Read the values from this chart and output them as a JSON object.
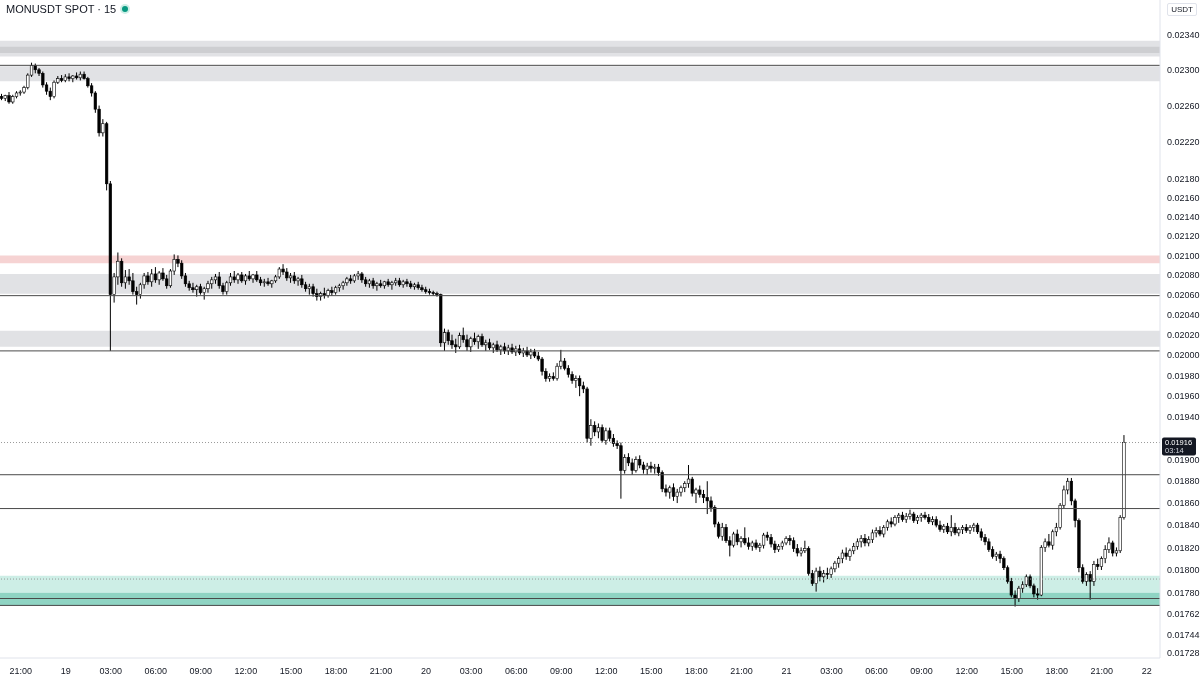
{
  "chart_data": {
    "type": "candlestick",
    "title": "MONUSDT SPOT · 15",
    "ylabel": "USDT",
    "color": "#000000",
    "log": true,
    "ylim": [
      0.01724,
      0.0238
    ],
    "yticks": [
      {
        "value": 0.0234,
        "label": "0.02340"
      },
      {
        "value": 0.023,
        "label": "0.02300"
      },
      {
        "value": 0.0226,
        "label": "0.02260"
      },
      {
        "value": 0.0222,
        "label": "0.02220"
      },
      {
        "value": 0.0218,
        "label": "0.02180"
      },
      {
        "value": 0.0216,
        "label": "0.02160"
      },
      {
        "value": 0.0214,
        "label": "0.02140"
      },
      {
        "value": 0.0212,
        "label": "0.02120"
      },
      {
        "value": 0.021,
        "label": "0.02100"
      },
      {
        "value": 0.0208,
        "label": "0.02080"
      },
      {
        "value": 0.0206,
        "label": "0.02060"
      },
      {
        "value": 0.0204,
        "label": "0.02040"
      },
      {
        "value": 0.0202,
        "label": "0.02020"
      },
      {
        "value": 0.02,
        "label": "0.02000"
      },
      {
        "value": 0.0198,
        "label": "0.01980"
      },
      {
        "value": 0.0196,
        "label": "0.01960"
      },
      {
        "value": 0.0194,
        "label": "0.01940"
      },
      {
        "value": 0.019,
        "label": "0.01900"
      },
      {
        "value": 0.0188,
        "label": "0.01880"
      },
      {
        "value": 0.0186,
        "label": "0.01860"
      },
      {
        "value": 0.0184,
        "label": "0.01840"
      },
      {
        "value": 0.0182,
        "label": "0.01820"
      },
      {
        "value": 0.018,
        "label": "0.01800"
      },
      {
        "value": 0.0178,
        "label": "0.01780"
      },
      0.01762,
      0.01744,
      0.01728
    ],
    "bands": [
      {
        "axis": "y",
        "from": 0.02315,
        "to": 0.02333,
        "color": "#e1e2e5"
      },
      {
        "axis": "y",
        "from": 0.02319,
        "to": 0.02326,
        "color": "#cdced1"
      },
      {
        "axis": "y",
        "from": 0.02287,
        "to": 0.02304,
        "color": "#e1e2e5"
      },
      {
        "axis": "y",
        "from": 0.02092,
        "to": 0.021,
        "color": "#f6d3d3"
      },
      {
        "axis": "y",
        "from": 0.02061,
        "to": 0.02081,
        "color": "#e1e2e5"
      },
      {
        "axis": "y",
        "from": 0.02008,
        "to": 0.02024,
        "color": "#e1e2e5"
      },
      {
        "axis": "y",
        "from": 0.0178,
        "to": 0.01795,
        "color": "#cdeee6"
      },
      {
        "axis": "y",
        "from": 0.01769,
        "to": 0.0178,
        "color": "#8fd4c3"
      }
    ],
    "ref_lines": [
      {
        "axis": "y",
        "value": 0.02305,
        "color": "#4a4a4a"
      },
      {
        "axis": "y",
        "value": 0.02059,
        "color": "#4a4a4a"
      },
      {
        "axis": "y",
        "value": 0.02004,
        "color": "#4a4a4a"
      },
      {
        "axis": "y",
        "value": 0.01916,
        "label": "0.01916",
        "color": "#9a9a9a",
        "line_style": "dotted"
      },
      {
        "axis": "y",
        "value": 0.01886,
        "color": "#4a4a4a"
      },
      {
        "axis": "y",
        "value": 0.01855,
        "color": "#4a4a4a"
      },
      {
        "axis": "y",
        "value": 0.01792,
        "color": "#9a9a9a",
        "line_style": "dotted"
      },
      {
        "axis": "y",
        "value": 0.01775,
        "color": "#4a4a4a"
      },
      {
        "axis": "y",
        "value": 0.01769,
        "color": "#4a4a4a"
      }
    ],
    "annotations": [
      "03:14"
    ],
    "categories": [
      null,
      null,
      null,
      null,
      null,
      "21:00",
      null,
      null,
      null,
      null,
      null,
      null,
      null,
      null,
      null,
      null,
      null,
      "19",
      null,
      null,
      null,
      null,
      null,
      null,
      null,
      null,
      null,
      null,
      null,
      "03:00",
      null,
      null,
      null,
      null,
      null,
      null,
      null,
      null,
      null,
      null,
      null,
      "06:00",
      null,
      null,
      null,
      null,
      null,
      null,
      null,
      null,
      null,
      null,
      null,
      "09:00",
      null,
      null,
      null,
      null,
      null,
      null,
      null,
      null,
      null,
      null,
      null,
      "12:00",
      null,
      null,
      null,
      null,
      null,
      null,
      null,
      null,
      null,
      null,
      null,
      "15:00",
      null,
      null,
      null,
      null,
      null,
      null,
      null,
      null,
      null,
      null,
      null,
      "18:00",
      null,
      null,
      null,
      null,
      null,
      null,
      null,
      null,
      null,
      null,
      null,
      "21:00",
      null,
      null,
      null,
      null,
      null,
      null,
      null,
      null,
      null,
      null,
      null,
      "20",
      null,
      null,
      null,
      null,
      null,
      null,
      null,
      null,
      null,
      null,
      null,
      "03:00",
      null,
      null,
      null,
      null,
      null,
      null,
      null,
      null,
      null,
      null,
      null,
      "06:00",
      null,
      null,
      null,
      null,
      null,
      null,
      null,
      null,
      null,
      null,
      null,
      "09:00",
      null,
      null,
      null,
      null,
      null,
      null,
      null,
      null,
      null,
      null,
      null,
      "12:00",
      null,
      null,
      null,
      null,
      null,
      null,
      null,
      null,
      null,
      null,
      null,
      "15:00",
      null,
      null,
      null,
      null,
      null,
      null,
      null,
      null,
      null,
      null,
      null,
      "18:00",
      null,
      null,
      null,
      null,
      null,
      null,
      null,
      null,
      null,
      null,
      null,
      "21:00",
      null,
      null,
      null,
      null,
      null,
      null,
      null,
      null,
      null,
      null,
      null,
      "21",
      null,
      null,
      null,
      null,
      null,
      null,
      null,
      null,
      null,
      null,
      null,
      "03:00",
      null,
      null,
      null,
      null,
      null,
      null,
      null,
      null,
      null,
      null,
      null,
      "06:00",
      null,
      null,
      null,
      null,
      null,
      null,
      null,
      null,
      null,
      null,
      null,
      "09:00",
      null,
      null,
      null,
      null,
      null,
      null,
      null,
      null,
      null,
      null,
      null,
      "12:00",
      null,
      null,
      null,
      null,
      null,
      null,
      null,
      null,
      null,
      null,
      null,
      "15:00",
      null,
      null,
      null,
      null,
      null,
      null,
      null,
      null,
      null,
      null,
      null,
      "18:00",
      null,
      null,
      null,
      null,
      null,
      null,
      null,
      null,
      null,
      null,
      null,
      "21:00",
      null,
      null,
      null,
      null,
      null,
      null,
      null,
      null,
      null,
      null,
      null,
      "22",
      null,
      null,
      null
    ],
    "ohlc": [
      [
        0.0227,
        0.02273,
        0.02266,
        0.02268
      ],
      [
        0.02268,
        0.02272,
        0.02265,
        0.02271
      ],
      [
        0.02271,
        0.02275,
        0.02262,
        0.02264
      ],
      [
        0.02264,
        0.02272,
        0.02262,
        0.0227
      ],
      [
        0.0227,
        0.02276,
        0.02268,
        0.02274
      ],
      [
        0.02274,
        0.02277,
        0.02271,
        0.02275
      ],
      [
        0.02275,
        0.02282,
        0.02273,
        0.0228
      ],
      [
        0.0228,
        0.02296,
        0.02278,
        0.02294
      ],
      [
        0.02294,
        0.02308,
        0.02292,
        0.02305
      ],
      [
        0.02305,
        0.02307,
        0.02296,
        0.023
      ],
      [
        0.023,
        0.02302,
        0.02293,
        0.02296
      ],
      [
        0.02296,
        0.02298,
        0.0228,
        0.02283
      ],
      [
        0.02283,
        0.02286,
        0.02272,
        0.02276
      ],
      [
        0.02276,
        0.0228,
        0.02266,
        0.0227
      ],
      [
        0.0227,
        0.02288,
        0.02268,
        0.02286
      ],
      [
        0.02286,
        0.02293,
        0.02284,
        0.0229
      ],
      [
        0.0229,
        0.02294,
        0.02286,
        0.02288
      ],
      [
        0.02288,
        0.02295,
        0.02286,
        0.02292
      ],
      [
        0.02292,
        0.02296,
        0.02287,
        0.0229
      ],
      [
        0.0229,
        0.02294,
        0.02286,
        0.02293
      ],
      [
        0.02293,
        0.02297,
        0.02289,
        0.02291
      ],
      [
        0.02291,
        0.02298,
        0.02288,
        0.02295
      ],
      [
        0.02295,
        0.02298,
        0.02289,
        0.0229
      ],
      [
        0.0229,
        0.02292,
        0.0228,
        0.02282
      ],
      [
        0.02282,
        0.02285,
        0.0227,
        0.02274
      ],
      [
        0.02274,
        0.02276,
        0.02252,
        0.02256
      ],
      [
        0.02256,
        0.0226,
        0.02226,
        0.0223
      ],
      [
        0.0223,
        0.02245,
        0.02226,
        0.0224
      ],
      [
        0.0224,
        0.02242,
        0.02168,
        0.02175
      ],
      [
        0.02175,
        0.02178,
        0.02004,
        0.0206
      ],
      [
        0.0206,
        0.02082,
        0.02052,
        0.02078
      ],
      [
        0.02078,
        0.02103,
        0.0207,
        0.02094
      ],
      [
        0.02094,
        0.02097,
        0.02068,
        0.02072
      ],
      [
        0.02072,
        0.02085,
        0.02066,
        0.02078
      ],
      [
        0.02078,
        0.02086,
        0.0207,
        0.02074
      ],
      [
        0.02074,
        0.02082,
        0.0206,
        0.02063
      ],
      [
        0.02063,
        0.02068,
        0.0205,
        0.0206
      ],
      [
        0.0206,
        0.02072,
        0.02056,
        0.0207
      ],
      [
        0.0207,
        0.02082,
        0.02066,
        0.02079
      ],
      [
        0.02079,
        0.02083,
        0.0207,
        0.02073
      ],
      [
        0.02073,
        0.02086,
        0.02068,
        0.02081
      ],
      [
        0.02081,
        0.02088,
        0.02072,
        0.02075
      ],
      [
        0.02075,
        0.02084,
        0.0207,
        0.02082
      ],
      [
        0.02082,
        0.02087,
        0.02074,
        0.02076
      ],
      [
        0.02076,
        0.0208,
        0.02066,
        0.02069
      ],
      [
        0.02069,
        0.02086,
        0.02067,
        0.02084
      ],
      [
        0.02084,
        0.02101,
        0.0208,
        0.02096
      ],
      [
        0.02096,
        0.021,
        0.02088,
        0.02092
      ],
      [
        0.02092,
        0.02095,
        0.02076,
        0.02079
      ],
      [
        0.02079,
        0.02082,
        0.02068,
        0.02071
      ],
      [
        0.02071,
        0.02074,
        0.02064,
        0.02067
      ],
      [
        0.02067,
        0.02072,
        0.02062,
        0.02065
      ],
      [
        0.02065,
        0.0207,
        0.02058,
        0.02068
      ],
      [
        0.02068,
        0.02071,
        0.0206,
        0.02062
      ],
      [
        0.02062,
        0.02068,
        0.02055,
        0.02066
      ],
      [
        0.02066,
        0.02074,
        0.02062,
        0.02071
      ],
      [
        0.02071,
        0.02078,
        0.02066,
        0.02075
      ],
      [
        0.02075,
        0.02081,
        0.02071,
        0.02078
      ],
      [
        0.02078,
        0.02083,
        0.02066,
        0.02069
      ],
      [
        0.02069,
        0.02072,
        0.0206,
        0.02063
      ],
      [
        0.02063,
        0.02074,
        0.0206,
        0.02072
      ],
      [
        0.02072,
        0.02082,
        0.02069,
        0.02078
      ],
      [
        0.02078,
        0.02084,
        0.02072,
        0.02075
      ],
      [
        0.02075,
        0.02082,
        0.02071,
        0.0208
      ],
      [
        0.0208,
        0.02083,
        0.02072,
        0.02074
      ],
      [
        0.02074,
        0.02081,
        0.0207,
        0.02079
      ],
      [
        0.02079,
        0.02084,
        0.02074,
        0.02076
      ],
      [
        0.02076,
        0.02081,
        0.02072,
        0.0208
      ],
      [
        0.0208,
        0.02084,
        0.02073,
        0.02075
      ],
      [
        0.02075,
        0.02078,
        0.02069,
        0.02072
      ],
      [
        0.02072,
        0.02076,
        0.02068,
        0.02073
      ],
      [
        0.02073,
        0.02077,
        0.02069,
        0.02071
      ],
      [
        0.02071,
        0.02075,
        0.02067,
        0.02074
      ],
      [
        0.02074,
        0.0208,
        0.02072,
        0.02078
      ],
      [
        0.02078,
        0.02088,
        0.02076,
        0.02086
      ],
      [
        0.02086,
        0.02091,
        0.0208,
        0.02083
      ],
      [
        0.02083,
        0.02087,
        0.02074,
        0.02077
      ],
      [
        0.02077,
        0.02082,
        0.02072,
        0.02079
      ],
      [
        0.02079,
        0.02083,
        0.02071,
        0.02074
      ],
      [
        0.02074,
        0.02078,
        0.02069,
        0.02076
      ],
      [
        0.02076,
        0.0208,
        0.02067,
        0.0207
      ],
      [
        0.0207,
        0.02073,
        0.02063,
        0.02066
      ],
      [
        0.02066,
        0.02071,
        0.0206,
        0.02068
      ],
      [
        0.02068,
        0.02071,
        0.02058,
        0.02061
      ],
      [
        0.02061,
        0.02066,
        0.02054,
        0.02058
      ],
      [
        0.02058,
        0.02063,
        0.02054,
        0.02061
      ],
      [
        0.02061,
        0.02067,
        0.02056,
        0.02059
      ],
      [
        0.02059,
        0.02066,
        0.02057,
        0.02064
      ],
      [
        0.02064,
        0.02068,
        0.02059,
        0.02062
      ],
      [
        0.02062,
        0.02069,
        0.0206,
        0.02067
      ],
      [
        0.02067,
        0.02071,
        0.02063,
        0.02069
      ],
      [
        0.02069,
        0.02074,
        0.02065,
        0.02072
      ],
      [
        0.02072,
        0.02078,
        0.02069,
        0.02076
      ],
      [
        0.02076,
        0.0208,
        0.02071,
        0.02074
      ],
      [
        0.02074,
        0.02081,
        0.02072,
        0.02079
      ],
      [
        0.02079,
        0.02084,
        0.02075,
        0.02081
      ],
      [
        0.02081,
        0.02083,
        0.02072,
        0.02075
      ],
      [
        0.02075,
        0.02078,
        0.02068,
        0.02071
      ],
      [
        0.02071,
        0.02076,
        0.02067,
        0.02074
      ],
      [
        0.02074,
        0.02077,
        0.02066,
        0.02069
      ],
      [
        0.02069,
        0.02073,
        0.02064,
        0.02071
      ],
      [
        0.02071,
        0.02075,
        0.02067,
        0.02069
      ],
      [
        0.02069,
        0.02074,
        0.02066,
        0.02073
      ],
      [
        0.02073,
        0.02076,
        0.02068,
        0.0207
      ],
      [
        0.0207,
        0.02074,
        0.02065,
        0.02072
      ],
      [
        0.02072,
        0.02077,
        0.02069,
        0.02074
      ],
      [
        0.02074,
        0.02077,
        0.02068,
        0.0207
      ],
      [
        0.0207,
        0.02075,
        0.02067,
        0.02073
      ],
      [
        0.02073,
        0.02076,
        0.02068,
        0.02071
      ],
      [
        0.02071,
        0.02074,
        0.02066,
        0.02068
      ],
      [
        0.02068,
        0.02072,
        0.02065,
        0.0207
      ],
      [
        0.0207,
        0.02073,
        0.02065,
        0.02067
      ],
      [
        0.02067,
        0.0207,
        0.02063,
        0.02065
      ],
      [
        0.02065,
        0.02068,
        0.02061,
        0.02063
      ],
      [
        0.02063,
        0.02066,
        0.0206,
        0.02062
      ],
      [
        0.02062,
        0.02064,
        0.02059,
        0.02061
      ],
      [
        0.02061,
        0.02063,
        0.02058,
        0.0206
      ],
      [
        0.0206,
        0.02061,
        0.02008,
        0.02012
      ],
      [
        0.02012,
        0.02026,
        0.02004,
        0.02022
      ],
      [
        0.02022,
        0.02025,
        0.0201,
        0.02014
      ],
      [
        0.02014,
        0.0202,
        0.02006,
        0.0201
      ],
      [
        0.0201,
        0.02016,
        0.02002,
        0.02008
      ],
      [
        0.02008,
        0.02022,
        0.02006,
        0.02019
      ],
      [
        0.02019,
        0.02027,
        0.02012,
        0.02015
      ],
      [
        0.02015,
        0.0202,
        0.02004,
        0.02008
      ],
      [
        0.02008,
        0.02018,
        0.02003,
        0.02016
      ],
      [
        0.02016,
        0.02022,
        0.0201,
        0.02013
      ],
      [
        0.02013,
        0.0202,
        0.02006,
        0.02018
      ],
      [
        0.02018,
        0.02021,
        0.02008,
        0.0201
      ],
      [
        0.0201,
        0.02015,
        0.02004,
        0.02012
      ],
      [
        0.02012,
        0.02016,
        0.02005,
        0.02007
      ],
      [
        0.02007,
        0.02012,
        0.02002,
        0.0201
      ],
      [
        0.0201,
        0.02014,
        0.02003,
        0.02005
      ],
      [
        0.02005,
        0.0201,
        0.02,
        0.02008
      ],
      [
        0.02008,
        0.02012,
        0.02001,
        0.02004
      ],
      [
        0.02004,
        0.0201,
        0.02,
        0.02007
      ],
      [
        0.02007,
        0.02011,
        0.02001,
        0.02003
      ],
      [
        0.02003,
        0.02009,
        0.01999,
        0.02006
      ],
      [
        0.02006,
        0.0201,
        0.02,
        0.02002
      ],
      [
        0.02002,
        0.02007,
        0.01998,
        0.02004
      ],
      [
        0.02004,
        0.02008,
        0.01998,
        0.02
      ],
      [
        0.02,
        0.02006,
        0.01996,
        0.02003
      ],
      [
        0.02003,
        0.02006,
        0.01997,
        0.01999
      ],
      [
        0.01999,
        0.02003,
        0.01994,
        0.01996
      ],
      [
        0.01996,
        0.01998,
        0.0198,
        0.01984
      ],
      [
        0.01984,
        0.01987,
        0.01974,
        0.01977
      ],
      [
        0.01977,
        0.01982,
        0.01974,
        0.01979
      ],
      [
        0.01979,
        0.01983,
        0.01975,
        0.01977
      ],
      [
        0.01977,
        0.01992,
        0.01975,
        0.01989
      ],
      [
        0.01989,
        0.02005,
        0.01986,
        0.01994
      ],
      [
        0.01994,
        0.01997,
        0.01985,
        0.01987
      ],
      [
        0.01987,
        0.0199,
        0.01978,
        0.01981
      ],
      [
        0.01981,
        0.01984,
        0.01972,
        0.01975
      ],
      [
        0.01975,
        0.0198,
        0.01968,
        0.01977
      ],
      [
        0.01977,
        0.0198,
        0.0196,
        0.0197
      ],
      [
        0.0197,
        0.01974,
        0.01963,
        0.01967
      ],
      [
        0.01967,
        0.01969,
        0.01916,
        0.0192
      ],
      [
        0.0192,
        0.01938,
        0.01913,
        0.01932
      ],
      [
        0.01932,
        0.01936,
        0.01922,
        0.01926
      ],
      [
        0.01926,
        0.01934,
        0.0192,
        0.0193
      ],
      [
        0.0193,
        0.01933,
        0.01916,
        0.01918
      ],
      [
        0.01918,
        0.0193,
        0.01914,
        0.01927
      ],
      [
        0.01927,
        0.0193,
        0.01917,
        0.0192
      ],
      [
        0.0192,
        0.01924,
        0.01912,
        0.01915
      ],
      [
        0.01915,
        0.01918,
        0.0191,
        0.01913
      ],
      [
        0.01913,
        0.01916,
        0.01864,
        0.0189
      ],
      [
        0.0189,
        0.01905,
        0.01887,
        0.01902
      ],
      [
        0.01902,
        0.01906,
        0.01894,
        0.01897
      ],
      [
        0.01897,
        0.01901,
        0.01886,
        0.0189
      ],
      [
        0.0189,
        0.01903,
        0.01888,
        0.019
      ],
      [
        0.019,
        0.01904,
        0.01892,
        0.01895
      ],
      [
        0.01895,
        0.01898,
        0.01887,
        0.01891
      ],
      [
        0.01891,
        0.01897,
        0.01886,
        0.01894
      ],
      [
        0.01894,
        0.01898,
        0.01888,
        0.01892
      ],
      [
        0.01892,
        0.01896,
        0.01887,
        0.01893
      ],
      [
        0.01893,
        0.01896,
        0.01885,
        0.01888
      ],
      [
        0.01888,
        0.0189,
        0.0187,
        0.01873
      ],
      [
        0.01873,
        0.01877,
        0.01866,
        0.0187
      ],
      [
        0.0187,
        0.01876,
        0.01864,
        0.01874
      ],
      [
        0.01874,
        0.01878,
        0.01862,
        0.01866
      ],
      [
        0.01866,
        0.01873,
        0.0186,
        0.0187
      ],
      [
        0.0187,
        0.01876,
        0.01866,
        0.01874
      ],
      [
        0.01874,
        0.0188,
        0.0187,
        0.01878
      ],
      [
        0.01878,
        0.01895,
        0.01874,
        0.01882
      ],
      [
        0.01882,
        0.01884,
        0.01866,
        0.01869
      ],
      [
        0.01869,
        0.01874,
        0.0186,
        0.01872
      ],
      [
        0.01872,
        0.01876,
        0.01865,
        0.01868
      ],
      [
        0.01868,
        0.01872,
        0.0186,
        0.01865
      ],
      [
        0.01865,
        0.0188,
        0.0185,
        0.01862
      ],
      [
        0.01862,
        0.01866,
        0.01852,
        0.01856
      ],
      [
        0.01856,
        0.01858,
        0.01838,
        0.01841
      ],
      [
        0.01841,
        0.01843,
        0.01828,
        0.0183
      ],
      [
        0.0183,
        0.01842,
        0.01826,
        0.01838
      ],
      [
        0.01838,
        0.01841,
        0.01824,
        0.01826
      ],
      [
        0.01826,
        0.0183,
        0.01812,
        0.01822
      ],
      [
        0.01822,
        0.01834,
        0.0182,
        0.01832
      ],
      [
        0.01832,
        0.01836,
        0.01822,
        0.01825
      ],
      [
        0.01825,
        0.0183,
        0.0182,
        0.01828
      ],
      [
        0.01828,
        0.01838,
        0.01822,
        0.01824
      ],
      [
        0.01824,
        0.01829,
        0.01818,
        0.01821
      ],
      [
        0.01821,
        0.01826,
        0.01817,
        0.01824
      ],
      [
        0.01824,
        0.01827,
        0.01818,
        0.0182
      ],
      [
        0.0182,
        0.01824,
        0.01816,
        0.01822
      ],
      [
        0.01822,
        0.01833,
        0.01819,
        0.01831
      ],
      [
        0.01831,
        0.01834,
        0.01826,
        0.01829
      ],
      [
        0.01829,
        0.01832,
        0.0182,
        0.01823
      ],
      [
        0.01823,
        0.01826,
        0.01815,
        0.01818
      ],
      [
        0.01818,
        0.01823,
        0.01816,
        0.01821
      ],
      [
        0.01821,
        0.01826,
        0.01818,
        0.01824
      ],
      [
        0.01824,
        0.0183,
        0.01822,
        0.01828
      ],
      [
        0.01828,
        0.01831,
        0.01822,
        0.01826
      ],
      [
        0.01826,
        0.01829,
        0.01816,
        0.01819
      ],
      [
        0.01819,
        0.01823,
        0.01812,
        0.01815
      ],
      [
        0.01815,
        0.0182,
        0.01812,
        0.01817
      ],
      [
        0.01817,
        0.01826,
        0.01815,
        0.01819
      ],
      [
        0.01819,
        0.01821,
        0.01795,
        0.01797
      ],
      [
        0.01797,
        0.018,
        0.01786,
        0.01788
      ],
      [
        0.01788,
        0.01802,
        0.01781,
        0.01799
      ],
      [
        0.01799,
        0.01803,
        0.0179,
        0.01794
      ],
      [
        0.01794,
        0.018,
        0.01789,
        0.01797
      ],
      [
        0.01797,
        0.01802,
        0.01792,
        0.01796
      ],
      [
        0.01796,
        0.01803,
        0.01793,
        0.01801
      ],
      [
        0.01801,
        0.01808,
        0.01798,
        0.01806
      ],
      [
        0.01806,
        0.01812,
        0.01802,
        0.0181
      ],
      [
        0.0181,
        0.01818,
        0.01806,
        0.01815
      ],
      [
        0.01815,
        0.0182,
        0.01809,
        0.01812
      ],
      [
        0.01812,
        0.01819,
        0.01808,
        0.01817
      ],
      [
        0.01817,
        0.01824,
        0.01814,
        0.01821
      ],
      [
        0.01821,
        0.01828,
        0.01818,
        0.01825
      ],
      [
        0.01825,
        0.01831,
        0.0182,
        0.01828
      ],
      [
        0.01828,
        0.01832,
        0.01821,
        0.01824
      ],
      [
        0.01824,
        0.0183,
        0.01821,
        0.01827
      ],
      [
        0.01827,
        0.01836,
        0.01824,
        0.01833
      ],
      [
        0.01833,
        0.01838,
        0.01829,
        0.01835
      ],
      [
        0.01835,
        0.01839,
        0.0183,
        0.01832
      ],
      [
        0.01832,
        0.0184,
        0.01829,
        0.01838
      ],
      [
        0.01838,
        0.01845,
        0.01835,
        0.01843
      ],
      [
        0.01843,
        0.01847,
        0.01838,
        0.01841
      ],
      [
        0.01841,
        0.01849,
        0.01839,
        0.01847
      ],
      [
        0.01847,
        0.01851,
        0.01842,
        0.01849
      ],
      [
        0.01849,
        0.01852,
        0.01843,
        0.01845
      ],
      [
        0.01845,
        0.01851,
        0.01842,
        0.01848
      ],
      [
        0.01848,
        0.01854,
        0.01845,
        0.0185
      ],
      [
        0.0185,
        0.01852,
        0.01842,
        0.01844
      ],
      [
        0.01844,
        0.01849,
        0.01841,
        0.01847
      ],
      [
        0.01847,
        0.01851,
        0.01843,
        0.01849
      ],
      [
        0.01849,
        0.01852,
        0.01845,
        0.01847
      ],
      [
        0.01847,
        0.0185,
        0.01841,
        0.01843
      ],
      [
        0.01843,
        0.01848,
        0.0184,
        0.01845
      ],
      [
        0.01845,
        0.01848,
        0.01838,
        0.0184
      ],
      [
        0.0184,
        0.01844,
        0.01834,
        0.01836
      ],
      [
        0.01836,
        0.01841,
        0.01833,
        0.01839
      ],
      [
        0.01839,
        0.01842,
        0.01832,
        0.01834
      ],
      [
        0.01834,
        0.01849,
        0.0183,
        0.01838
      ],
      [
        0.01838,
        0.01842,
        0.01831,
        0.01833
      ],
      [
        0.01833,
        0.01838,
        0.0183,
        0.01836
      ],
      [
        0.01836,
        0.0184,
        0.01832,
        0.01838
      ],
      [
        0.01838,
        0.01841,
        0.01833,
        0.01835
      ],
      [
        0.01835,
        0.0184,
        0.01832,
        0.01838
      ],
      [
        0.01838,
        0.01842,
        0.01834,
        0.0184
      ],
      [
        0.0184,
        0.01842,
        0.01832,
        0.01834
      ],
      [
        0.01834,
        0.01837,
        0.01826,
        0.01829
      ],
      [
        0.01829,
        0.01832,
        0.01822,
        0.01825
      ],
      [
        0.01825,
        0.01828,
        0.01816,
        0.01818
      ],
      [
        0.01818,
        0.01821,
        0.0181,
        0.01812
      ],
      [
        0.01812,
        0.01816,
        0.01808,
        0.01814
      ],
      [
        0.01814,
        0.01817,
        0.01806,
        0.0181
      ],
      [
        0.0181,
        0.01812,
        0.018,
        0.01802
      ],
      [
        0.01802,
        0.01804,
        0.01788,
        0.0179
      ],
      [
        0.0179,
        0.01793,
        0.01776,
        0.01778
      ],
      [
        0.01778,
        0.01782,
        0.01768,
        0.01775
      ],
      [
        0.01775,
        0.01786,
        0.01772,
        0.01784
      ],
      [
        0.01784,
        0.0179,
        0.0178,
        0.01787
      ],
      [
        0.01787,
        0.01796,
        0.01785,
        0.01794
      ],
      [
        0.01794,
        0.01796,
        0.01784,
        0.01786
      ],
      [
        0.01786,
        0.01788,
        0.01776,
        0.01779
      ],
      [
        0.01779,
        0.01784,
        0.01774,
        0.01778
      ],
      [
        0.01778,
        0.01822,
        0.01777,
        0.0182
      ],
      [
        0.0182,
        0.01828,
        0.01816,
        0.01825
      ],
      [
        0.01825,
        0.01832,
        0.0182,
        0.01822
      ],
      [
        0.01822,
        0.01836,
        0.01818,
        0.01834
      ],
      [
        0.01834,
        0.01842,
        0.0183,
        0.01838
      ],
      [
        0.01838,
        0.0186,
        0.01836,
        0.01858
      ],
      [
        0.01858,
        0.01876,
        0.01855,
        0.01872
      ],
      [
        0.01872,
        0.01883,
        0.01868,
        0.0188
      ],
      [
        0.0188,
        0.01883,
        0.01858,
        0.01862
      ],
      [
        0.01862,
        0.01864,
        0.01838,
        0.01844
      ],
      [
        0.01844,
        0.01846,
        0.01798,
        0.01802
      ],
      [
        0.01802,
        0.01805,
        0.01788,
        0.0179
      ],
      [
        0.0179,
        0.01798,
        0.01786,
        0.01796
      ],
      [
        0.01796,
        0.01799,
        0.01774,
        0.0179
      ],
      [
        0.0179,
        0.01808,
        0.01786,
        0.01805
      ],
      [
        0.01805,
        0.0181,
        0.018,
        0.01803
      ],
      [
        0.01803,
        0.01812,
        0.018,
        0.0181
      ],
      [
        0.0181,
        0.01822,
        0.01806,
        0.01818
      ],
      [
        0.01818,
        0.01829,
        0.01815,
        0.01824
      ],
      [
        0.01824,
        0.01826,
        0.01812,
        0.01815
      ],
      [
        0.01815,
        0.0182,
        0.01812,
        0.01817
      ],
      [
        0.01817,
        0.01849,
        0.01815,
        0.01847
      ],
      [
        0.01847,
        0.01923,
        0.01845,
        0.01916
      ],
      null,
      null,
      null,
      null,
      null,
      null,
      null,
      null,
      null
    ]
  }
}
